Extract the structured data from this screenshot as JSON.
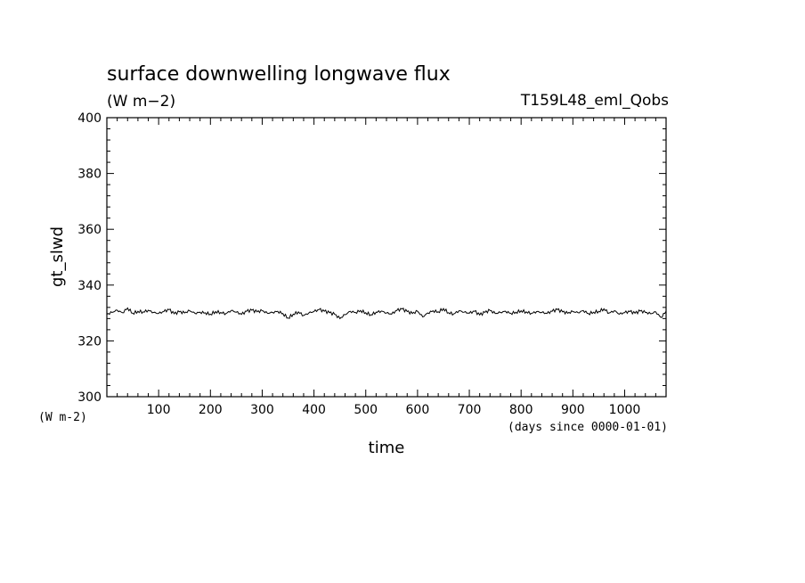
{
  "chart_data": {
    "type": "line",
    "title": "surface downwelling longwave flux",
    "subtitle_units": "(W m−2)",
    "experiment": "T159L48_eml_Qobs",
    "xlabel": "time",
    "x_units": "(days since 0000-01-01)",
    "ylabel": "gt_slwd",
    "y_units": "(W m-2)",
    "xlim": [
      0,
      1080
    ],
    "ylim": [
      300,
      400
    ],
    "x_ticks": [
      100,
      200,
      300,
      400,
      500,
      600,
      700,
      800,
      900,
      1000
    ],
    "y_ticks": [
      300,
      320,
      340,
      360,
      380,
      400
    ],
    "grid": false,
    "series": [
      {
        "x": [
          0,
          10,
          20,
          30,
          40,
          50,
          60,
          70,
          80,
          90,
          100,
          110,
          120,
          130,
          140,
          150,
          160,
          170,
          180,
          190,
          200,
          210,
          220,
          230,
          240,
          250,
          260,
          270,
          280,
          290,
          300,
          310,
          320,
          330,
          340,
          350,
          360,
          370,
          380,
          390,
          400,
          410,
          420,
          430,
          440,
          450,
          460,
          470,
          480,
          490,
          500,
          510,
          520,
          530,
          540,
          550,
          560,
          570,
          580,
          590,
          600,
          610,
          620,
          630,
          640,
          650,
          660,
          670,
          680,
          690,
          700,
          710,
          720,
          730,
          740,
          750,
          760,
          770,
          780,
          790,
          800,
          810,
          820,
          830,
          840,
          850,
          860,
          870,
          880,
          890,
          900,
          910,
          920,
          930,
          940,
          950,
          960,
          970,
          980,
          990,
          1000,
          1010,
          1020,
          1030,
          1040,
          1050,
          1060,
          1070,
          1080
        ],
        "values": [
          329.5,
          330.2,
          331.0,
          330.1,
          331.8,
          329.9,
          330.6,
          330.4,
          331.0,
          330.2,
          329.8,
          330.5,
          331.2,
          329.7,
          330.4,
          330.0,
          330.8,
          329.9,
          330.3,
          330.1,
          329.6,
          330.5,
          330.2,
          329.8,
          330.9,
          330.3,
          329.5,
          330.6,
          331.0,
          330.4,
          330.8,
          329.9,
          330.2,
          330.6,
          329.8,
          328.2,
          329.6,
          330.4,
          329.1,
          330.0,
          330.5,
          331.2,
          330.6,
          330.1,
          329.5,
          328.0,
          329.4,
          330.6,
          330.2,
          330.9,
          330.1,
          329.4,
          330.3,
          330.7,
          330.0,
          329.6,
          330.9,
          331.4,
          330.5,
          329.8,
          330.6,
          328.6,
          330.0,
          330.8,
          330.4,
          331.6,
          330.1,
          329.7,
          330.8,
          330.3,
          329.9,
          330.6,
          329.3,
          330.2,
          330.9,
          329.8,
          330.2,
          330.6,
          329.9,
          330.3,
          330.8,
          330.4,
          329.9,
          330.5,
          330.2,
          329.8,
          330.6,
          331.2,
          330.4,
          329.9,
          330.5,
          330.1,
          330.9,
          329.8,
          330.3,
          330.6,
          331.5,
          330.0,
          330.8,
          329.6,
          330.1,
          330.5,
          329.9,
          330.7,
          330.2,
          329.7,
          330.4,
          328.4,
          330.6
        ]
      }
    ]
  }
}
